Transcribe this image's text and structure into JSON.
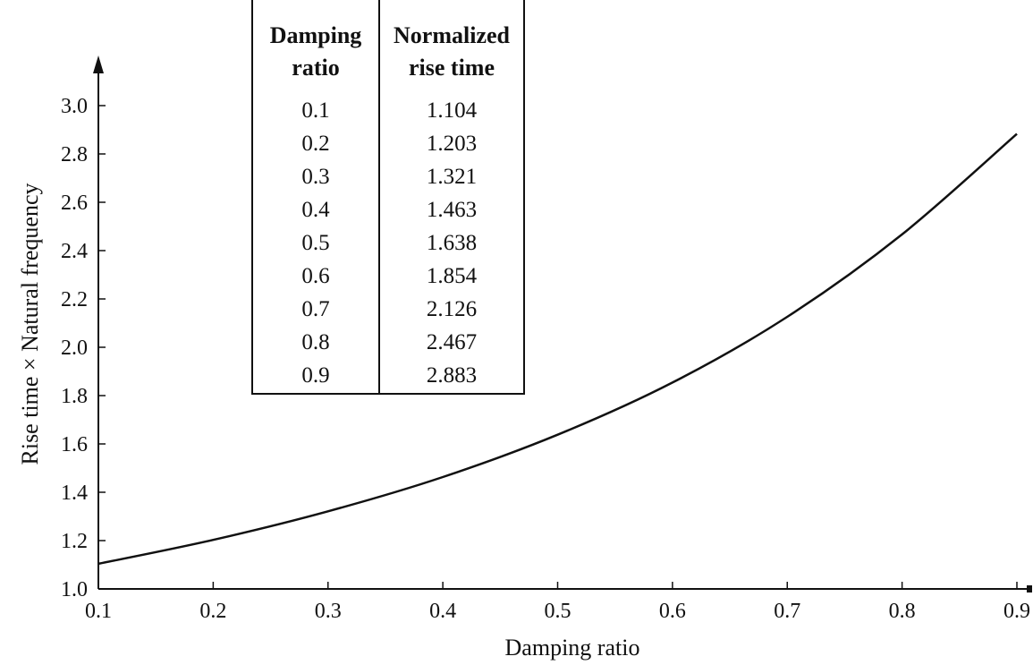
{
  "chart_data": {
    "type": "line",
    "xlabel": "Damping ratio",
    "ylabel": "Rise time × Natural frequency",
    "xlim": [
      0.1,
      0.9
    ],
    "ylim": [
      1.0,
      3.0
    ],
    "x_ticks": [
      "0.1",
      "0.2",
      "0.3",
      "0.4",
      "0.5",
      "0.6",
      "0.7",
      "0.8",
      "0.9"
    ],
    "y_ticks": [
      "1.0",
      "1.2",
      "1.4",
      "1.6",
      "1.8",
      "2.0",
      "2.2",
      "2.4",
      "2.6",
      "2.8",
      "3.0"
    ],
    "grid": false,
    "legend": "none",
    "series": [
      {
        "x": [
          0.1,
          0.2,
          0.3,
          0.4,
          0.5,
          0.6,
          0.7,
          0.8,
          0.9
        ],
        "values": [
          1.104,
          1.203,
          1.321,
          1.463,
          1.638,
          1.854,
          2.126,
          2.467,
          2.883
        ]
      }
    ],
    "table": {
      "headers": [
        [
          "Damping",
          "ratio"
        ],
        [
          "Normalized",
          "rise time"
        ]
      ],
      "rows": [
        [
          "0.1",
          "1.104"
        ],
        [
          "0.2",
          "1.203"
        ],
        [
          "0.3",
          "1.321"
        ],
        [
          "0.4",
          "1.463"
        ],
        [
          "0.5",
          "1.638"
        ],
        [
          "0.6",
          "1.854"
        ],
        [
          "0.7",
          "2.126"
        ],
        [
          "0.8",
          "2.467"
        ],
        [
          "0.9",
          "2.883"
        ]
      ]
    },
    "line_color": "#111111"
  }
}
